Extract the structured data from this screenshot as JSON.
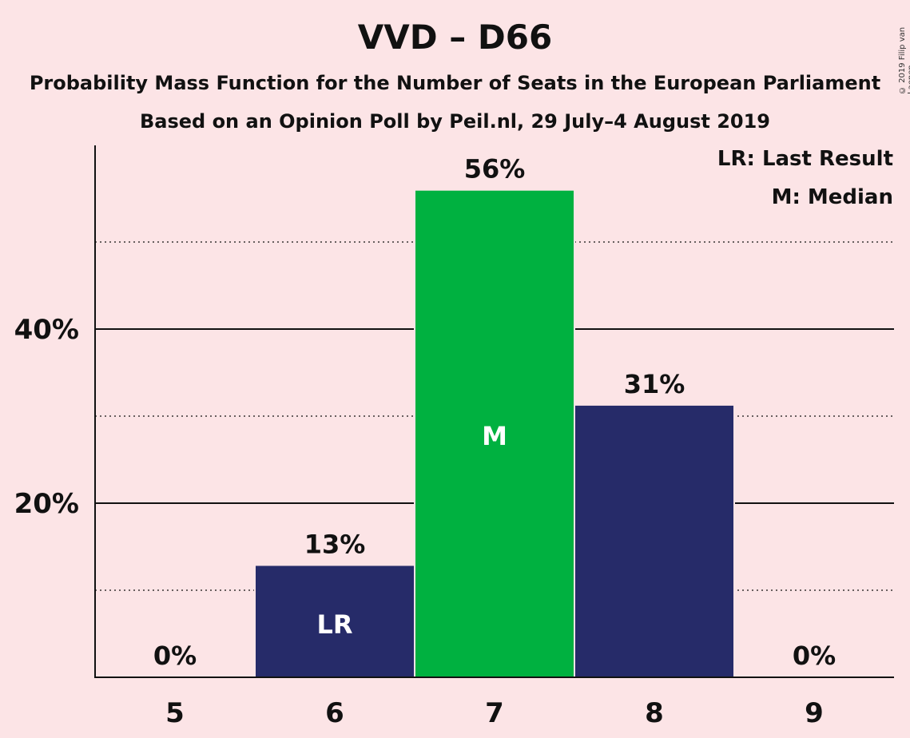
{
  "title": "VVD – D66",
  "subtitle1": "Probability Mass Function for the Number of Seats in the European Parliament",
  "subtitle2": "Based on an Opinion Poll by Peil.nl, 29 July–4 August 2019",
  "copyright": "© 2019 Filip van Laenen",
  "legend": {
    "lr": "LR: Last Result",
    "m": "M: Median"
  },
  "colors": {
    "background": "#FCE4E6",
    "bar_default": "#262B69",
    "bar_median": "#00B140"
  },
  "chart_data": {
    "type": "bar",
    "categories": [
      "5",
      "6",
      "7",
      "8",
      "9"
    ],
    "values": [
      0,
      12.8,
      55.9,
      31.2,
      0
    ],
    "value_labels": [
      "0%",
      "13%",
      "56%",
      "31%",
      "0%"
    ],
    "bar_annotations": [
      "",
      "LR",
      "M",
      "",
      ""
    ],
    "ylim": [
      0,
      61
    ],
    "y_ticks": [
      {
        "value": 20,
        "label": "20%"
      },
      {
        "value": 40,
        "label": "40%"
      }
    ],
    "major_gridlines": [
      20,
      40
    ],
    "minor_gridlines": [
      10,
      30,
      50
    ],
    "last_result_category": "6",
    "median_category": "7",
    "xlabel": "",
    "ylabel": ""
  }
}
